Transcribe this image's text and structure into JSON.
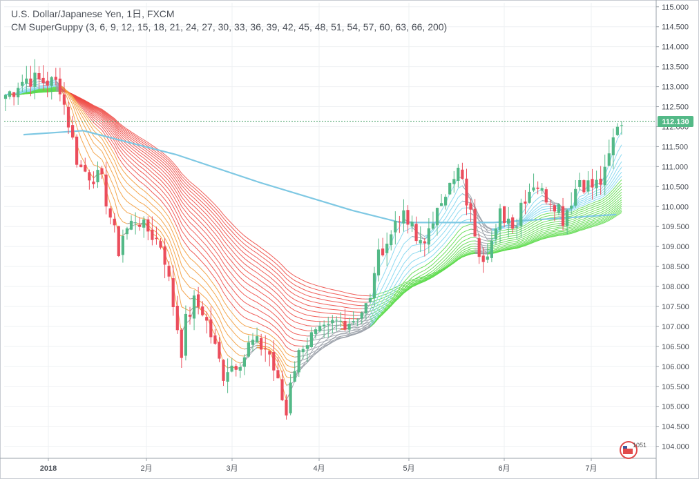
{
  "legend": {
    "symbol_line": "U.S. Dollar/Japanese Yen, 1日, FXCM",
    "indicator_line": "CM SuperGuppy (3, 6, 9, 12, 15, 18, 21, 24, 27, 30, 33, 36, 39, 42, 45, 48, 51, 54, 57, 60, 63, 66, 200)"
  },
  "last_price_label": "112.130",
  "logo_text": "1051",
  "colors": {
    "up": "#53b987",
    "down": "#eb4d5c",
    "ema200": "#7ec8e3",
    "price_line": "#3a9a5b",
    "grid": "#eef0f3"
  },
  "chart_data": {
    "type": "candlestick",
    "y_axis": {
      "min": 103.7,
      "max": 115.1,
      "ticks": [
        "115.000",
        "114.500",
        "114.000",
        "113.500",
        "113.000",
        "112.500",
        "112.000",
        "111.500",
        "111.000",
        "110.500",
        "110.000",
        "109.500",
        "109.000",
        "108.500",
        "108.000",
        "107.500",
        "107.000",
        "106.500",
        "106.000",
        "105.500",
        "105.000",
        "104.500",
        "104.000"
      ]
    },
    "x_axis": {
      "labels": [
        "2018",
        "2月",
        "3月",
        "4月",
        "5月",
        "6月",
        "7月"
      ]
    },
    "last_price": 112.13,
    "ohlc_sample": [
      {
        "date": "2017-12-26",
        "o": 113.2,
        "h": 113.6,
        "l": 112.9,
        "c": 113.3
      },
      {
        "date": "2018-01-05",
        "o": 113.1,
        "h": 113.4,
        "l": 112.8,
        "c": 113.0
      },
      {
        "date": "2018-01-09",
        "o": 113.0,
        "h": 113.3,
        "l": 111.6,
        "c": 111.9
      },
      {
        "date": "2018-01-15",
        "o": 110.8,
        "h": 111.1,
        "l": 110.4,
        "c": 110.6
      },
      {
        "date": "2018-01-25",
        "o": 109.6,
        "h": 109.8,
        "l": 108.3,
        "c": 109.1
      },
      {
        "date": "2018-02-02",
        "o": 109.5,
        "h": 110.5,
        "l": 109.2,
        "c": 110.2
      },
      {
        "date": "2018-02-16",
        "o": 107.6,
        "h": 107.8,
        "l": 105.6,
        "c": 106.3
      },
      {
        "date": "2018-03-02",
        "o": 106.3,
        "h": 106.5,
        "l": 105.3,
        "c": 105.7
      },
      {
        "date": "2018-03-23",
        "o": 105.2,
        "h": 105.4,
        "l": 104.6,
        "c": 104.7
      },
      {
        "date": "2018-04-05",
        "o": 106.6,
        "h": 107.3,
        "l": 106.2,
        "c": 107.0
      },
      {
        "date": "2018-04-25",
        "o": 108.6,
        "h": 109.4,
        "l": 108.3,
        "c": 109.3
      },
      {
        "date": "2018-05-21",
        "o": 110.8,
        "h": 111.4,
        "l": 110.7,
        "c": 111.0
      },
      {
        "date": "2018-05-29",
        "o": 109.5,
        "h": 109.6,
        "l": 108.2,
        "c": 108.9
      },
      {
        "date": "2018-06-15",
        "o": 110.3,
        "h": 110.9,
        "l": 110.2,
        "c": 110.7
      },
      {
        "date": "2018-07-12",
        "o": 111.6,
        "h": 112.2,
        "l": 111.5,
        "c": 112.1
      }
    ],
    "ema200_approx": [
      {
        "date": "2017-12-26",
        "v": 111.8
      },
      {
        "date": "2018-01-15",
        "v": 111.9
      },
      {
        "date": "2018-02-15",
        "v": 111.3
      },
      {
        "date": "2018-03-15",
        "v": 110.6
      },
      {
        "date": "2018-04-15",
        "v": 109.9
      },
      {
        "date": "2018-05-01",
        "v": 109.6
      },
      {
        "date": "2018-06-01",
        "v": 109.6
      },
      {
        "date": "2018-07-12",
        "v": 109.8
      }
    ]
  }
}
